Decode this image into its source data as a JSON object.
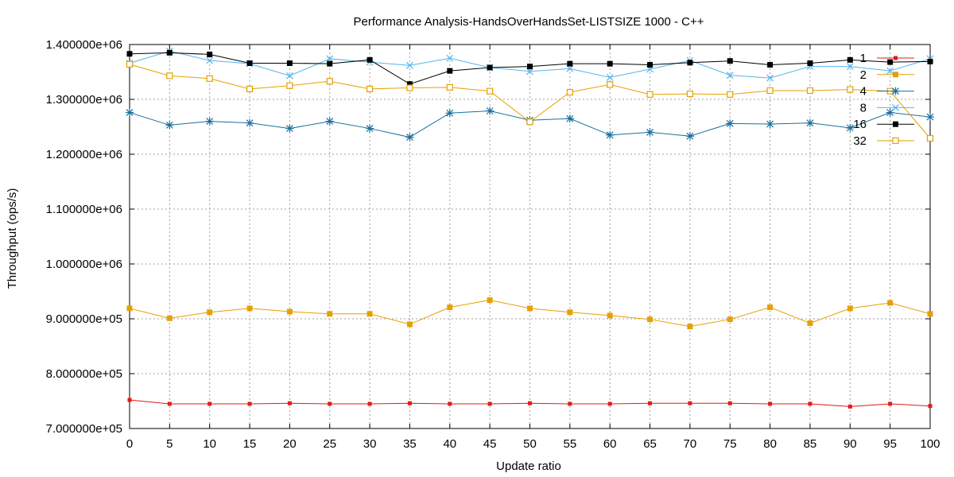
{
  "chart_data": {
    "type": "line",
    "title": "Performance Analysis-HandsOverHandsSet-LISTSIZE 1000 - C++",
    "xlabel": "Update ratio",
    "ylabel": "Throughput (ops/s)",
    "xlim": [
      0,
      100
    ],
    "ylim": [
      700000,
      1400000
    ],
    "grid": true,
    "legend_position": "top-right",
    "x": [
      0,
      5,
      10,
      15,
      20,
      25,
      30,
      35,
      40,
      45,
      50,
      55,
      60,
      65,
      70,
      75,
      80,
      85,
      90,
      95,
      100
    ],
    "x_tick_labels": [
      "0",
      "5",
      "10",
      "15",
      "20",
      "25",
      "30",
      "35",
      "40",
      "45",
      "50",
      "55",
      "60",
      "65",
      "70",
      "75",
      "80",
      "85",
      "90",
      "95",
      "100"
    ],
    "y_ticks": [
      700000,
      800000,
      900000,
      1000000,
      1100000,
      1200000,
      1300000,
      1400000
    ],
    "y_tick_labels": [
      "7.000000e+05",
      "8.000000e+05",
      "9.000000e+05",
      "1.000000e+06",
      "1.100000e+06",
      "1.200000e+06",
      "1.300000e+06",
      "1.400000e+06"
    ],
    "series": [
      {
        "name": "1",
        "color": "#e41a1c",
        "marker": "dot",
        "values": [
          752000,
          745000,
          745000,
          745000,
          746000,
          745000,
          745000,
          746000,
          745000,
          745000,
          746000,
          745000,
          745000,
          746000,
          746000,
          746000,
          745000,
          745000,
          740000,
          745000,
          741000
        ]
      },
      {
        "name": "2",
        "color": "#e6a000",
        "marker": "filled-square",
        "values": [
          919000,
          901000,
          912000,
          919000,
          913000,
          909000,
          909000,
          890000,
          921000,
          934000,
          919000,
          912000,
          906000,
          899000,
          886000,
          899000,
          921000,
          892000,
          919000,
          929000,
          909000
        ]
      },
      {
        "name": "4",
        "color": "#1a6f9c",
        "marker": "star",
        "values": [
          1276000,
          1253000,
          1260000,
          1257000,
          1247000,
          1260000,
          1247000,
          1231000,
          1275000,
          1279000,
          1262000,
          1265000,
          1235000,
          1240000,
          1233000,
          1256000,
          1255000,
          1257000,
          1248000,
          1276000,
          1268000
        ]
      },
      {
        "name": "8",
        "color": "#56b4e9",
        "marker": "cross",
        "values": [
          1366000,
          1388000,
          1371000,
          1365000,
          1343000,
          1374000,
          1368000,
          1362000,
          1375000,
          1358000,
          1351000,
          1356000,
          1340000,
          1355000,
          1371000,
          1344000,
          1339000,
          1360000,
          1360000,
          1352000,
          1374000
        ]
      },
      {
        "name": "16",
        "color": "#000000",
        "marker": "filled-square",
        "values": [
          1383000,
          1385000,
          1382000,
          1366000,
          1366000,
          1365000,
          1372000,
          1328000,
          1352000,
          1358000,
          1360000,
          1365000,
          1365000,
          1363000,
          1367000,
          1370000,
          1363000,
          1366000,
          1372000,
          1368000,
          1369000
        ]
      },
      {
        "name": "32",
        "color": "#e6a000",
        "marker": "open-square",
        "values": [
          1364000,
          1343000,
          1338000,
          1319000,
          1325000,
          1333000,
          1319000,
          1321000,
          1322000,
          1315000,
          1259000,
          1313000,
          1327000,
          1309000,
          1310000,
          1309000,
          1316000,
          1316000,
          1318000,
          1315000,
          1229000
        ]
      }
    ]
  }
}
